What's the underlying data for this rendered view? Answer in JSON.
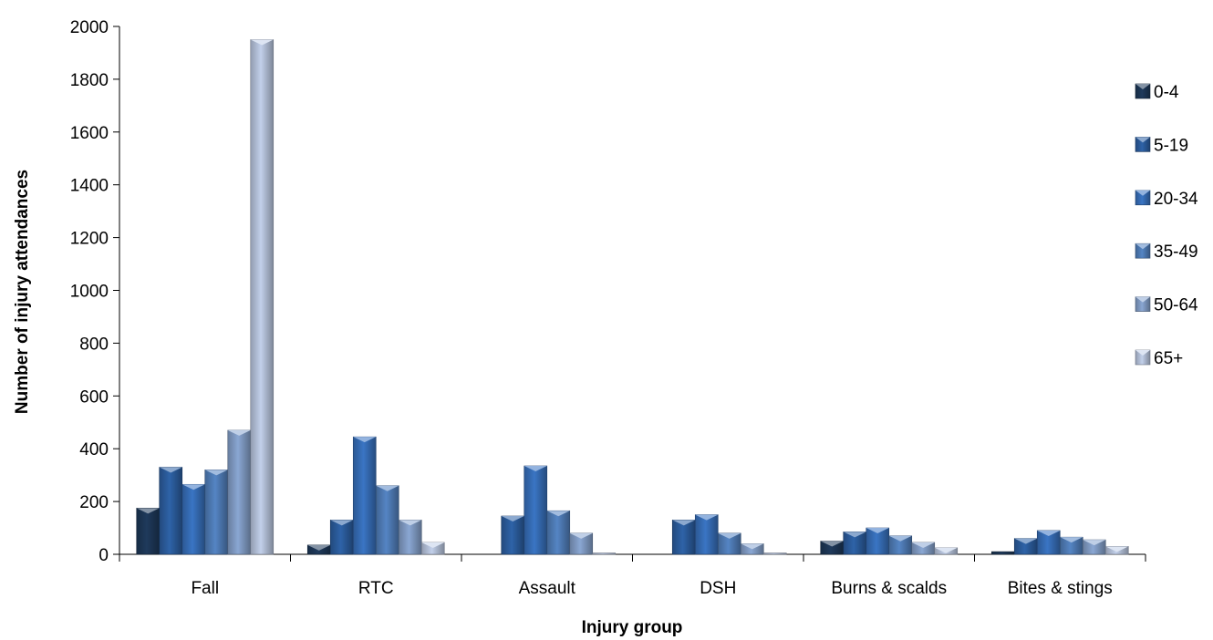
{
  "chart_data": {
    "type": "bar",
    "title": "",
    "xlabel": "Injury group",
    "ylabel": "Number of injury attendances",
    "ylim": [
      0,
      2000
    ],
    "yticks": [
      0,
      200,
      400,
      600,
      800,
      1000,
      1200,
      1400,
      1600,
      1800,
      2000
    ],
    "grid": false,
    "legend_position": "right",
    "categories": [
      "Fall",
      "RTC",
      "Assault",
      "DSH",
      "Burns & scalds",
      "Bites & stings"
    ],
    "series": [
      {
        "name": "0-4",
        "color": "#1f3a5c",
        "values": [
          175,
          35,
          0,
          0,
          50,
          10
        ]
      },
      {
        "name": "5-19",
        "color": "#2e63a8",
        "values": [
          330,
          130,
          145,
          130,
          85,
          60
        ]
      },
      {
        "name": "20-34",
        "color": "#3a75c4",
        "values": [
          265,
          445,
          335,
          150,
          100,
          90
        ]
      },
      {
        "name": "35-49",
        "color": "#5585c4",
        "values": [
          320,
          260,
          165,
          80,
          70,
          65
        ]
      },
      {
        "name": "50-64",
        "color": "#8aa7d3",
        "values": [
          470,
          130,
          80,
          40,
          45,
          55
        ]
      },
      {
        "name": "65+",
        "color": "#c2d0ea",
        "values": [
          1950,
          45,
          5,
          5,
          25,
          30
        ]
      }
    ]
  }
}
